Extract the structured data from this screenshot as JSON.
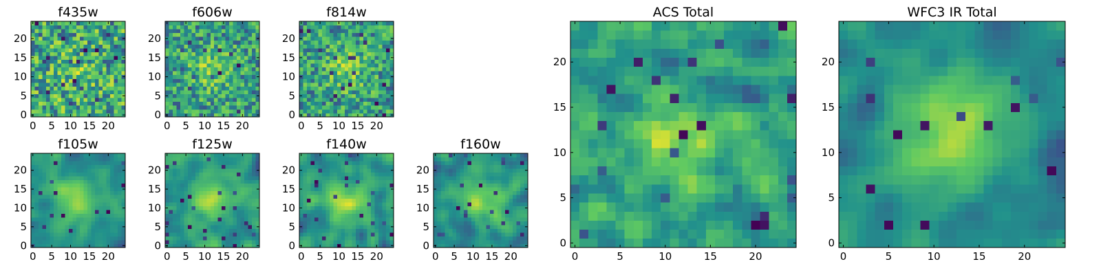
{
  "figure": {
    "colormap": "viridis",
    "colors": [
      "#440154",
      "#3b528b",
      "#21918c",
      "#5ec962",
      "#fde725"
    ]
  },
  "chart_data": [
    {
      "type": "heatmap",
      "title": "f435w",
      "grid_size": 25,
      "xticks": [
        "0",
        "5",
        "10",
        "15",
        "20"
      ],
      "yticks": [
        "0",
        "5",
        "10",
        "15",
        "20"
      ],
      "xlim": [
        -0.5,
        24.5
      ],
      "ylim": [
        -0.5,
        24.5
      ],
      "peak_center": [
        11,
        11
      ],
      "peak_strength": 0.15,
      "noise": "high",
      "seed": 11
    },
    {
      "type": "heatmap",
      "title": "f606w",
      "grid_size": 25,
      "xticks": [
        "0",
        "5",
        "10",
        "15",
        "20"
      ],
      "yticks": [
        "0",
        "5",
        "10",
        "15",
        "20"
      ],
      "xlim": [
        -0.5,
        24.5
      ],
      "ylim": [
        -0.5,
        24.5
      ],
      "peak_center": [
        12,
        12
      ],
      "peak_strength": 0.3,
      "noise": "high",
      "seed": 23
    },
    {
      "type": "heatmap",
      "title": "f814w",
      "grid_size": 25,
      "xticks": [
        "0",
        "5",
        "10",
        "15",
        "20"
      ],
      "yticks": [
        "0",
        "5",
        "10",
        "15",
        "20"
      ],
      "xlim": [
        -0.5,
        24.5
      ],
      "ylim": [
        -0.5,
        24.5
      ],
      "peak_center": [
        12,
        12
      ],
      "peak_strength": 0.3,
      "noise": "high",
      "seed": 37
    },
    {
      "type": "heatmap",
      "title": "f105w",
      "grid_size": 25,
      "xticks": [
        "0",
        "5",
        "10",
        "15",
        "20"
      ],
      "yticks": [
        "0",
        "5",
        "10",
        "15",
        "20"
      ],
      "xlim": [
        -0.5,
        24.5
      ],
      "ylim": [
        -0.5,
        24.5
      ],
      "peak_center": [
        12,
        12
      ],
      "peak_strength": 0.5,
      "noise": "smooth",
      "seed": 41
    },
    {
      "type": "heatmap",
      "title": "f125w",
      "grid_size": 25,
      "xticks": [
        "0",
        "5",
        "10",
        "15",
        "20"
      ],
      "yticks": [
        "0",
        "5",
        "10",
        "15",
        "20"
      ],
      "xlim": [
        -0.5,
        24.5
      ],
      "ylim": [
        -0.5,
        24.5
      ],
      "peak_center": [
        12,
        12
      ],
      "peak_strength": 0.4,
      "noise": "smooth",
      "seed": 53
    },
    {
      "type": "heatmap",
      "title": "f140w",
      "grid_size": 25,
      "xticks": [
        "0",
        "5",
        "10",
        "15",
        "20"
      ],
      "yticks": [
        "0",
        "5",
        "10",
        "15",
        "20"
      ],
      "xlim": [
        -0.5,
        24.5
      ],
      "ylim": [
        -0.5,
        24.5
      ],
      "peak_center": [
        12,
        12
      ],
      "peak_strength": 0.4,
      "noise": "smooth",
      "seed": 67
    },
    {
      "type": "heatmap",
      "title": "f160w",
      "grid_size": 25,
      "xticks": [
        "0",
        "5",
        "10",
        "15",
        "20"
      ],
      "yticks": [
        "0",
        "5",
        "10",
        "15",
        "20"
      ],
      "xlim": [
        -0.5,
        24.5
      ],
      "ylim": [
        -0.5,
        24.5
      ],
      "peak_center": [
        12,
        12
      ],
      "peak_strength": 0.5,
      "noise": "smooth",
      "seed": 79
    },
    {
      "type": "heatmap",
      "title": "ACS Total",
      "grid_size": 25,
      "xticks": [
        "0",
        "5",
        "10",
        "15",
        "20"
      ],
      "yticks": [
        "0",
        "5",
        "10",
        "15",
        "20"
      ],
      "xlim": [
        -0.5,
        24.5
      ],
      "ylim": [
        -0.5,
        24.5
      ],
      "peak_center": [
        12,
        12
      ],
      "peak_strength": 0.35,
      "noise": "medium",
      "seed": 97
    },
    {
      "type": "heatmap",
      "title": "WFC3 IR Total",
      "grid_size": 25,
      "xticks": [
        "0",
        "5",
        "10",
        "15",
        "20"
      ],
      "yticks": [
        "0",
        "5",
        "10",
        "15",
        "20"
      ],
      "xlim": [
        -0.5,
        24.5
      ],
      "ylim": [
        -0.5,
        24.5
      ],
      "peak_center": [
        12,
        12
      ],
      "peak_strength": 0.6,
      "noise": "smooth",
      "seed": 113
    }
  ]
}
